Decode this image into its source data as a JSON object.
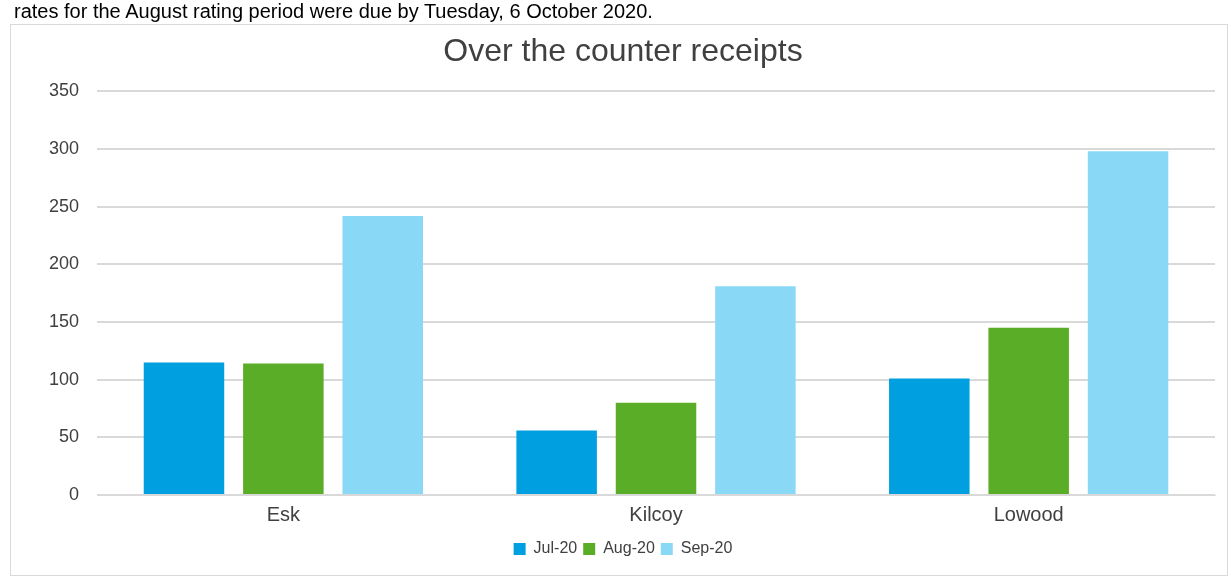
{
  "chart_data": {
    "type": "bar",
    "title": "Over the counter receipts",
    "categories": [
      "Esk",
      "Kilcoy",
      "Lowood"
    ],
    "series": [
      {
        "name": "Jul-20",
        "color": "#009fe0",
        "values": [
          115,
          56,
          101
        ]
      },
      {
        "name": "Aug-20",
        "color": "#5aad27",
        "values": [
          114,
          80,
          145
        ]
      },
      {
        "name": "Sep-20",
        "color": "#89d8f6",
        "values": [
          242,
          181,
          298
        ]
      }
    ],
    "ylim": [
      0,
      350
    ],
    "yticks": [
      0,
      50,
      100,
      150,
      200,
      250,
      300,
      350
    ],
    "grid": "y",
    "legend": "bottom",
    "annotations": [
      "rates for the August rating period were due by Tuesday, 6 October 2020."
    ]
  }
}
